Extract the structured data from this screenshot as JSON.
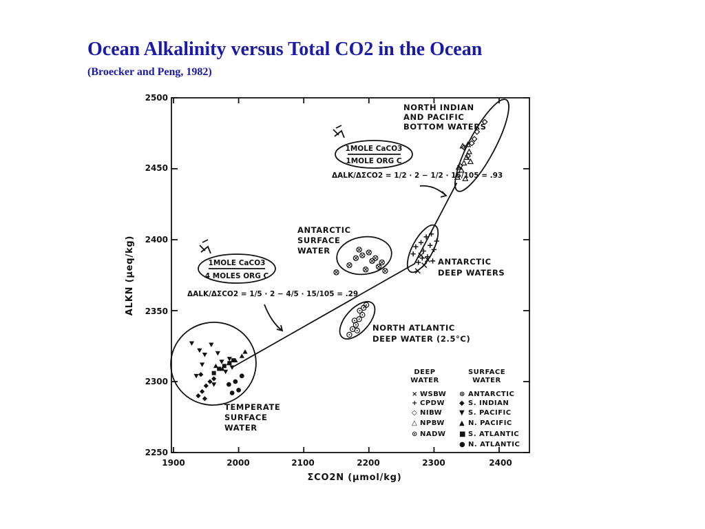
{
  "slide": {
    "title": "Ocean Alkalinity versus Total CO2 in the Ocean",
    "subtitle": "(Broecker and Peng, 1982)"
  },
  "chart_data": {
    "type": "scatter",
    "xlabel": "ΣCO2N (μmol/kg)",
    "ylabel": "ALKN (μeq/kg)",
    "xlim": [
      1900,
      2450
    ],
    "ylim": [
      2250,
      2500
    ],
    "xticks": [
      "1900",
      "2000",
      "2100",
      "2200",
      "2300",
      "2400"
    ],
    "yticks": [
      "2250",
      "2300",
      "2350",
      "2400",
      "2450",
      "2500"
    ],
    "grid": false,
    "legend_position": "bottom-right",
    "legend": {
      "deep_header": [
        "DEEP",
        "WATER"
      ],
      "surface_header": [
        "SURFACE",
        "WATER"
      ],
      "deep": [
        {
          "symbol": "×",
          "label": "WSBW"
        },
        {
          "symbol": "+",
          "label": "CPDW"
        },
        {
          "symbol": "◇",
          "label": "NIBW"
        },
        {
          "symbol": "△",
          "label": "NPBW"
        },
        {
          "symbol": "⊙",
          "label": "NADW"
        }
      ],
      "surface": [
        {
          "symbol": "⊛",
          "label": "ANTARCTIC"
        },
        {
          "symbol": "◆",
          "label": "S. INDIAN"
        },
        {
          "symbol": "▼",
          "label": "S. PACIFIC"
        },
        {
          "symbol": "▲",
          "label": "N. PACIFIC"
        },
        {
          "symbol": "■",
          "label": "S. ATLANTIC"
        },
        {
          "symbol": "●",
          "label": "N. ATLANTIC"
        }
      ]
    },
    "group_labels": [
      {
        "lines": [
          "NORTH INDIAN",
          "AND PACIFIC",
          "BOTTOM WATERS"
        ]
      },
      {
        "lines": [
          "ANTARCTIC",
          "SURFACE",
          "WATER"
        ]
      },
      {
        "lines": [
          "ANTARCTIC",
          "DEEP WATERS"
        ]
      },
      {
        "lines": [
          "NORTH ATLANTIC",
          "DEEP WATER (2.5°C)"
        ]
      },
      {
        "lines": [
          "TEMPERATE",
          "SURFACE",
          "WATER"
        ]
      }
    ],
    "annotations": [
      {
        "top": "1MOLE CaCO3",
        "bottom": "1MOLE ORG C",
        "eq": "ΔALK/ΔΣCO2 = 1/2 · 2 − 1/2 · 15/105 = .93"
      },
      {
        "top": "1MOLE CaCO3",
        "bottom": "4 MOLES ORG C",
        "eq": "ΔALK/ΔΣCO2 = 1/5 · 2 − 4/5 · 15/105 = .29"
      }
    ],
    "trend_line": [
      [
        1990,
        2310
      ],
      [
        2270,
        2383
      ],
      [
        2335,
        2440
      ]
    ],
    "series": [
      {
        "name": "WSBW",
        "marker": "x",
        "x": [
          2275,
          2285,
          2290,
          2280
        ],
        "y": [
          2378,
          2382,
          2386,
          2389
        ]
      },
      {
        "name": "CPDW",
        "marker": "plus",
        "x": [
          2268,
          2272,
          2276,
          2280,
          2284,
          2288,
          2290,
          2294,
          2296,
          2300,
          2304,
          2282,
          2298
        ],
        "y": [
          2390,
          2395,
          2384,
          2398,
          2392,
          2402,
          2388,
          2396,
          2404,
          2393,
          2399,
          2387,
          2385
        ]
      },
      {
        "name": "NIBW",
        "marker": "diamond-open",
        "x": [
          2340,
          2352,
          2358,
          2366,
          2378,
          2346,
          2362
        ],
        "y": [
          2452,
          2459,
          2468,
          2476,
          2483,
          2465,
          2471
        ]
      },
      {
        "name": "NPBW",
        "marker": "triangle-open",
        "x": [
          2336,
          2342,
          2346,
          2350,
          2354,
          2344,
          2352,
          2338,
          2348,
          2356
        ],
        "y": [
          2444,
          2449,
          2454,
          2458,
          2462,
          2466,
          2467,
          2451,
          2443,
          2455
        ]
      },
      {
        "name": "NADW",
        "marker": "circle-dot",
        "x": [
          2170,
          2175,
          2180,
          2185,
          2190,
          2186,
          2192,
          2196,
          2182,
          2178
        ],
        "y": [
          2333,
          2337,
          2340,
          2344,
          2347,
          2350,
          2352,
          2354,
          2336,
          2343
        ]
      },
      {
        "name": "ANTARCTIC",
        "marker": "circle-cross",
        "x": [
          2150,
          2170,
          2180,
          2190,
          2200,
          2205,
          2210,
          2215,
          2220,
          2195,
          2185,
          2225
        ],
        "y": [
          2377,
          2382,
          2387,
          2389,
          2391,
          2385,
          2387,
          2381,
          2384,
          2379,
          2393,
          2378
        ]
      },
      {
        "name": "S. INDIAN",
        "marker": "diamond",
        "x": [
          1938,
          1944,
          1950,
          1956,
          1962,
          1948,
          1942
        ],
        "y": [
          2290,
          2293,
          2297,
          2300,
          2302,
          2288,
          2305
        ]
      },
      {
        "name": "S. PACIFIC",
        "marker": "triangle-down",
        "x": [
          1928,
          1940,
          1948,
          1958,
          1968,
          1974,
          1980,
          1990,
          1935,
          1962,
          1986,
          1944
        ],
        "y": [
          2327,
          2322,
          2319,
          2326,
          2320,
          2314,
          2307,
          2310,
          2304,
          2298,
          2316,
          2312
        ]
      },
      {
        "name": "N. PACIFIC",
        "marker": "triangle",
        "x": [
          1975,
          1985,
          1995,
          2005,
          2010,
          1965
        ],
        "y": [
          2309,
          2313,
          2315,
          2318,
          2321,
          2311
        ]
      },
      {
        "name": "S. ATLANTIC",
        "marker": "square",
        "x": [
          1962,
          1970,
          1978,
          1986,
          1992
        ],
        "y": [
          2306,
          2309,
          2311,
          2313,
          2315
        ]
      },
      {
        "name": "N. ATLANTIC",
        "marker": "circle",
        "x": [
          1985,
          1995,
          2005,
          1990,
          2000
        ],
        "y": [
          2298,
          2300,
          2304,
          2292,
          2294
        ]
      }
    ]
  }
}
